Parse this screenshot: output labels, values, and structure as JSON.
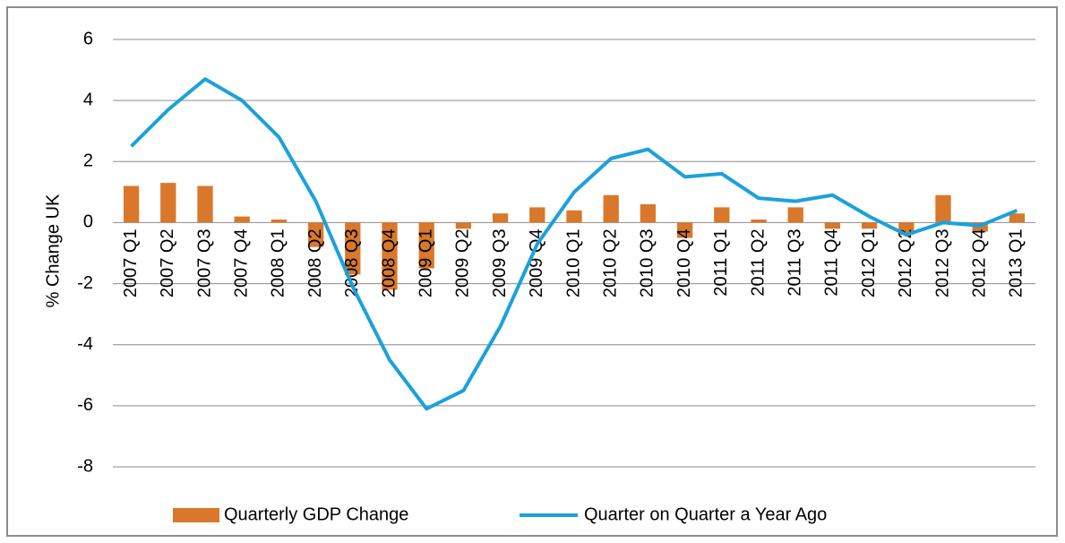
{
  "chart_data": {
    "type": "bar_line",
    "y_label": "% Change UK",
    "categories": [
      "2007 Q1",
      "2007 Q2",
      "2007 Q3",
      "2007 Q4",
      "2008 Q1",
      "2008 Q2",
      "2008 Q3",
      "2008 Q4",
      "2009 Q1",
      "2009 Q2",
      "2009 Q3",
      "2009 Q4",
      "2010 Q1",
      "2010 Q2",
      "2010 Q3",
      "2010 Q4",
      "2011 Q1",
      "2011 Q2",
      "2011 Q3",
      "2011 Q4",
      "2012 Q1",
      "2012 Q2",
      "2012 Q3",
      "2012 Q4",
      "2013 Q1"
    ],
    "series": [
      {
        "name": "Quarterly GDP Change",
        "kind": "bar",
        "color": "#d9782a",
        "values": [
          1.2,
          1.3,
          1.2,
          0.2,
          0.1,
          -0.8,
          -1.7,
          -2.2,
          -1.5,
          -0.2,
          0.3,
          0.5,
          0.4,
          0.9,
          0.6,
          -0.5,
          0.5,
          0.1,
          0.5,
          -0.2,
          -0.2,
          -0.4,
          0.9,
          -0.3,
          0.3
        ]
      },
      {
        "name": "Quarter on Quarter a Year Ago",
        "kind": "line",
        "color": "#1ba1dc",
        "values": [
          2.5,
          3.7,
          4.7,
          4.0,
          2.8,
          0.7,
          -2.1,
          -4.5,
          -6.1,
          -5.5,
          -3.4,
          -0.7,
          1.0,
          2.1,
          2.4,
          1.5,
          1.6,
          0.8,
          0.7,
          0.9,
          0.2,
          -0.4,
          0.0,
          -0.1,
          0.4
        ]
      }
    ],
    "ylim": [
      -8,
      6
    ],
    "yticks": [
      -8,
      -6,
      -4,
      -2,
      0,
      2,
      4,
      6
    ],
    "grid": true,
    "legend": "bottom"
  }
}
